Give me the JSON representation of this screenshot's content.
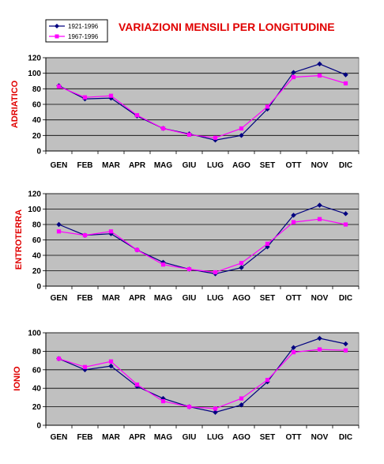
{
  "title": "VARIAZIONI MENSILI PER LONGITUDINE",
  "colors": {
    "series_1921": "#000080",
    "series_1967": "#ff00ff",
    "plot_bg": "#c0c0c0",
    "title": "#e00000"
  },
  "legend": [
    {
      "name": "1921-1996",
      "marker": "diamond"
    },
    {
      "name": "1967-1996",
      "marker": "square"
    }
  ],
  "chart_data": [
    {
      "type": "line",
      "ylabel": "ADRIATICO",
      "categories": [
        "GEN",
        "FEB",
        "MAR",
        "APR",
        "MAG",
        "GIU",
        "LUG",
        "AGO",
        "SET",
        "OTT",
        "NOV",
        "DIC"
      ],
      "ylim": [
        0,
        120
      ],
      "yticks": [
        0,
        20,
        40,
        60,
        80,
        100,
        120
      ],
      "grid": true,
      "legend": "top-left",
      "series": [
        {
          "name": "1921-1996",
          "values": [
            84,
            67,
            68,
            45,
            29,
            22,
            14,
            20,
            54,
            101,
            112,
            98
          ]
        },
        {
          "name": "1967-1996",
          "values": [
            83,
            69,
            71,
            46,
            29,
            21,
            17,
            29,
            57,
            95,
            97,
            87
          ]
        }
      ]
    },
    {
      "type": "line",
      "ylabel": "ENTROTERRA",
      "categories": [
        "GEN",
        "FEB",
        "MAR",
        "APR",
        "MAG",
        "GIU",
        "LUG",
        "AGO",
        "SET",
        "OTT",
        "NOV",
        "DIC"
      ],
      "ylim": [
        0,
        120
      ],
      "yticks": [
        0,
        20,
        40,
        60,
        80,
        100,
        120
      ],
      "grid": true,
      "series": [
        {
          "name": "1921-1996",
          "values": [
            80,
            66,
            68,
            47,
            31,
            22,
            16,
            24,
            51,
            92,
            105,
            94
          ]
        },
        {
          "name": "1967-1996",
          "values": [
            71,
            66,
            71,
            47,
            28,
            22,
            18,
            30,
            55,
            83,
            87,
            80
          ]
        }
      ]
    },
    {
      "type": "line",
      "ylabel": "IONIO",
      "categories": [
        "GEN",
        "FEB",
        "MAR",
        "APR",
        "MAG",
        "GIU",
        "LUG",
        "AGO",
        "SET",
        "OTT",
        "NOV",
        "DIC"
      ],
      "ylim": [
        0,
        100
      ],
      "yticks": [
        0,
        20,
        40,
        60,
        80,
        100
      ],
      "grid": true,
      "series": [
        {
          "name": "1921-1996",
          "values": [
            72,
            60,
            64,
            42,
            29,
            20,
            14,
            22,
            47,
            84,
            94,
            88
          ]
        },
        {
          "name": "1967-1996",
          "values": [
            72,
            63,
            69,
            44,
            26,
            20,
            18,
            29,
            49,
            79,
            82,
            81
          ]
        }
      ]
    }
  ]
}
